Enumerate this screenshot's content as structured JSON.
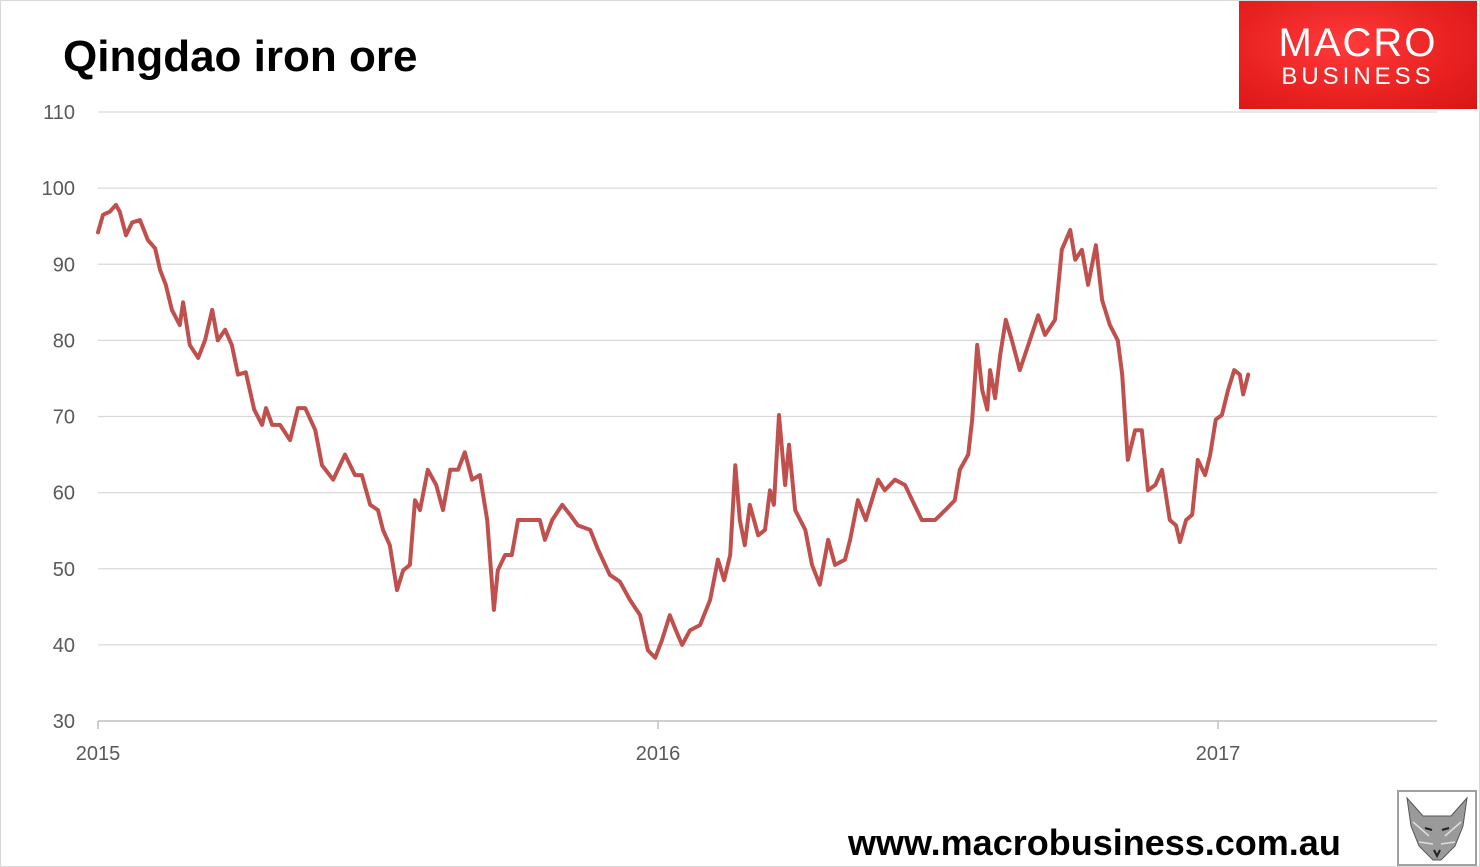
{
  "title": "Qingdao iron ore",
  "logo": {
    "line1": "MACRO",
    "line2": "BUSINESS"
  },
  "footer": "www.macrobusiness.com.au",
  "colors": {
    "series": "#C0504D",
    "grid": "#D9D9D9",
    "axis_text": "#595959",
    "logo_bg": "#E82020"
  },
  "chart_data": {
    "type": "line",
    "title": "Qingdao iron ore",
    "xlabel": "",
    "ylabel": "",
    "xlim": [
      2015,
      2017.39
    ],
    "ylim": [
      30,
      110
    ],
    "x_ticks": [
      2015,
      2016,
      2017
    ],
    "x_tick_labels": [
      "2015",
      "2016",
      "2017"
    ],
    "y_ticks": [
      30,
      40,
      50,
      60,
      70,
      80,
      90,
      100,
      110
    ],
    "y_tick_labels": [
      "30",
      "40",
      "50",
      "60",
      "70",
      "80",
      "90",
      "100",
      "110"
    ],
    "grid": true,
    "legend": "none",
    "series": [
      {
        "name": "Qingdao iron ore",
        "x": [
          2015.0,
          2015.009,
          2015.021,
          2015.032,
          2015.039,
          2015.05,
          2015.061,
          2015.075,
          2015.089,
          2015.102,
          2015.111,
          2015.121,
          2015.132,
          2015.146,
          2015.152,
          2015.164,
          2015.179,
          2015.191,
          2015.204,
          2015.214,
          2015.227,
          2015.239,
          2015.25,
          2015.264,
          2015.279,
          2015.293,
          2015.3,
          2015.311,
          2015.325,
          2015.343,
          2015.357,
          2015.37,
          2015.388,
          2015.4,
          2015.42,
          2015.441,
          2015.459,
          2015.471,
          2015.486,
          2015.5,
          2015.509,
          2015.521,
          2015.534,
          2015.545,
          2015.557,
          2015.566,
          2015.575,
          2015.589,
          2015.604,
          2015.616,
          2015.629,
          2015.643,
          2015.655,
          2015.668,
          2015.682,
          2015.695,
          2015.707,
          2015.714,
          2015.727,
          2015.739,
          2015.75,
          2015.768,
          2015.789,
          2015.798,
          2015.811,
          2015.829,
          2015.843,
          2015.857,
          2015.879,
          2015.893,
          2015.914,
          2015.932,
          2015.95,
          2015.968,
          2015.982,
          2015.995,
          2016.007,
          2016.021,
          2016.032,
          2016.043,
          2016.057,
          2016.075,
          2016.093,
          2016.107,
          2016.118,
          2016.129,
          2016.138,
          2016.146,
          2016.155,
          2016.164,
          2016.179,
          2016.191,
          2016.2,
          2016.207,
          2016.216,
          2016.227,
          2016.234,
          2016.245,
          2016.263,
          2016.275,
          2016.289,
          2016.304,
          2016.316,
          2016.334,
          2016.343,
          2016.357,
          2016.371,
          2016.393,
          2016.405,
          2016.423,
          2016.441,
          2016.454,
          2016.471,
          2016.495,
          2016.513,
          2016.53,
          2016.539,
          2016.554,
          2016.561,
          2016.57,
          2016.579,
          2016.588,
          2016.593,
          2016.602,
          2016.611,
          2016.621,
          2016.632,
          2016.646,
          2016.664,
          2016.679,
          2016.691,
          2016.709,
          2016.721,
          2016.736,
          2016.745,
          2016.757,
          2016.768,
          2016.782,
          2016.793,
          2016.807,
          2016.821,
          2016.829,
          2016.839,
          2016.852,
          2016.864,
          2016.875,
          2016.888,
          2016.9,
          2016.914,
          2016.925,
          2016.932,
          2016.943,
          2016.954,
          2016.964,
          2016.977,
          2016.986,
          2016.996,
          2017.007,
          2017.018,
          2017.029,
          2017.039,
          2017.045,
          2017.054
        ],
        "y": [
          94.2,
          96.5,
          96.9,
          97.8,
          96.9,
          93.8,
          95.5,
          95.8,
          93.2,
          92.1,
          89.2,
          87.3,
          84.0,
          82.0,
          85.0,
          79.4,
          77.7,
          80.0,
          84.0,
          80.0,
          81.4,
          79.4,
          75.5,
          75.8,
          70.9,
          68.9,
          71.1,
          68.9,
          68.9,
          66.9,
          71.1,
          71.1,
          68.2,
          63.6,
          61.7,
          65.0,
          62.3,
          62.3,
          58.4,
          57.7,
          55.1,
          53.1,
          47.2,
          49.8,
          50.5,
          59.0,
          57.7,
          63.0,
          61.0,
          57.7,
          63.0,
          63.0,
          65.3,
          61.7,
          62.3,
          56.4,
          44.6,
          49.8,
          51.8,
          51.8,
          56.4,
          56.4,
          56.4,
          53.8,
          56.4,
          58.4,
          57.1,
          55.7,
          55.1,
          52.5,
          49.2,
          48.3,
          45.9,
          43.9,
          39.3,
          38.3,
          40.6,
          43.9,
          41.9,
          40.0,
          41.9,
          42.6,
          45.9,
          51.2,
          48.5,
          51.8,
          63.6,
          56.4,
          53.1,
          58.4,
          54.4,
          55.1,
          60.3,
          58.4,
          70.2,
          61.0,
          66.3,
          57.7,
          55.1,
          50.5,
          47.9,
          53.8,
          50.5,
          51.2,
          53.8,
          59.0,
          56.4,
          61.7,
          60.3,
          61.7,
          61.0,
          59.0,
          56.4,
          56.4,
          57.7,
          59.0,
          63.0,
          65.0,
          69.6,
          79.4,
          73.5,
          70.9,
          76.1,
          72.4,
          78.1,
          82.7,
          80.0,
          76.1,
          80.0,
          83.3,
          80.7,
          82.7,
          91.9,
          94.5,
          90.6,
          91.9,
          87.3,
          92.5,
          85.3,
          82.0,
          80.0,
          75.5,
          64.3,
          68.2,
          68.2,
          60.3,
          61.0,
          63.0,
          56.4,
          55.7,
          53.5,
          56.4,
          57.1,
          64.3,
          62.3,
          65.0,
          69.6,
          70.2,
          73.5,
          76.1,
          75.5,
          72.9,
          75.5
        ]
      }
    ]
  }
}
